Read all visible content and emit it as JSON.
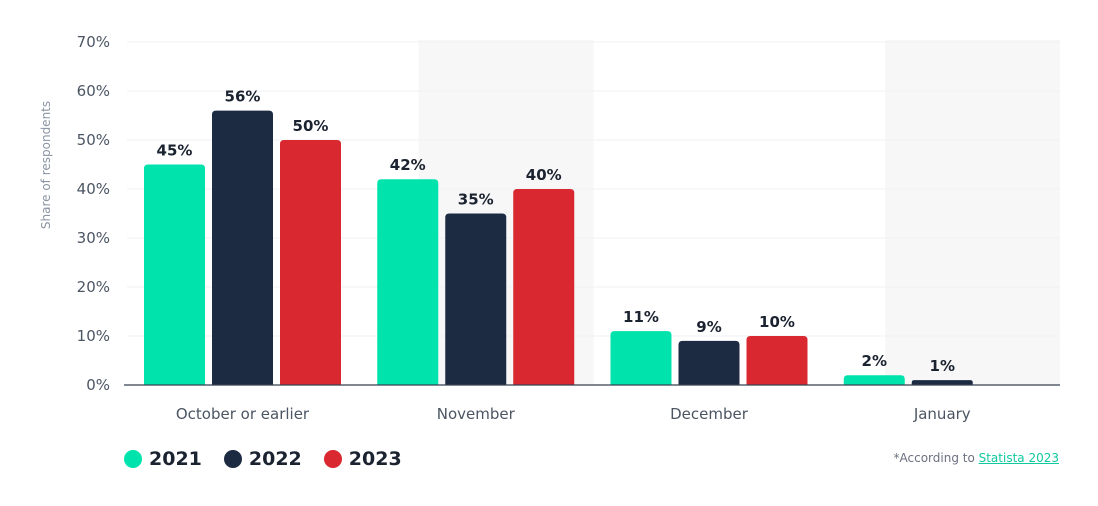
{
  "chart_data": {
    "type": "bar",
    "ylabel": "Share of respondents",
    "xlabel": "",
    "ylim": [
      0,
      70
    ],
    "yticks": [
      0,
      10,
      20,
      30,
      40,
      50,
      60,
      70
    ],
    "y_tick_suffix": "%",
    "grid": true,
    "legend_position": "bottom-left",
    "categories": [
      "October or earlier",
      "November",
      "December",
      "January"
    ],
    "shaded_categories": [
      "November",
      "January"
    ],
    "series": [
      {
        "name": "2021",
        "color": "#00e3ac",
        "values": [
          45,
          42,
          11,
          2
        ],
        "labels": [
          "45%",
          "42%",
          "11%",
          "2%"
        ]
      },
      {
        "name": "2022",
        "color": "#1c2b42",
        "values": [
          56,
          35,
          9,
          1
        ],
        "labels": [
          "56%",
          "35%",
          "9%",
          "1%"
        ]
      },
      {
        "name": "2023",
        "color": "#d9282f",
        "values": [
          50,
          40,
          10,
          null
        ],
        "labels": [
          "50%",
          "40%",
          "10%",
          ""
        ]
      }
    ]
  },
  "source": {
    "prefix": "*According to ",
    "link_text": "Statista 2023"
  }
}
